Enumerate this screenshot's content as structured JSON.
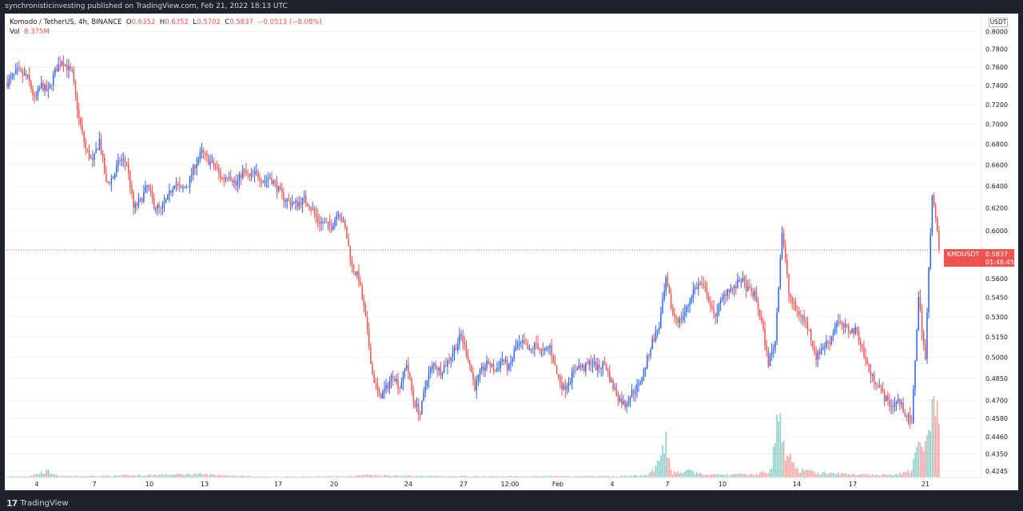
{
  "header": {
    "publisher_line": "synchronisticinvesting published on TradingView.com, Feb 21, 2022 18:13 UTC"
  },
  "legend": {
    "symbol_line": "Komodo / TetherUS, 4h, BINANCE",
    "o_label": "O",
    "o_value": "0.6352",
    "h_label": "H",
    "h_value": "0.6352",
    "l_label": "L",
    "l_value": "0.5702",
    "c_label": "C",
    "c_value": "0.5837",
    "change": "−0.0513 (−8.08%)",
    "vol_label": "Vol",
    "vol_value": "8.375M"
  },
  "currency_badge": "USDT",
  "last_price": {
    "symbol": "KMDUSDT",
    "price": "0.5837",
    "countdown": "01:46:45",
    "value": 0.5837
  },
  "footer": {
    "brand": "TradingView",
    "brand_mark": "17"
  },
  "colors": {
    "up": "#2962ff",
    "down": "#ef5350",
    "vol_up": "#26a69a",
    "vol_down": "#ef5350",
    "price_line": "#ef5350"
  },
  "chart_data": {
    "type": "candlestick",
    "timeframe": "4h",
    "y_scale": "log",
    "ylim": [
      0.4205,
      0.818
    ],
    "y_ticks": [
      "0.8000",
      "0.7800",
      "0.7600",
      "0.7400",
      "0.7200",
      "0.7000",
      "0.6800",
      "0.6600",
      "0.6400",
      "0.6200",
      "0.6000",
      "0.5600",
      "0.5450",
      "0.5300",
      "0.5150",
      "0.5000",
      "0.4850",
      "0.4700",
      "0.4580",
      "0.4460",
      "0.4350",
      "0.4245"
    ],
    "x_ticks": [
      "4",
      "7",
      "10",
      "13",
      "17",
      "20",
      "24",
      "27",
      "12:00",
      "Feb",
      "4",
      "7",
      "10",
      "14",
      "17",
      "21"
    ],
    "price_path": [
      [
        0,
        0.743
      ],
      [
        6,
        0.755
      ],
      [
        12,
        0.748
      ],
      [
        16,
        0.725
      ],
      [
        20,
        0.74
      ],
      [
        24,
        0.733
      ],
      [
        28,
        0.755
      ],
      [
        32,
        0.768
      ],
      [
        38,
        0.752
      ],
      [
        42,
        0.705
      ],
      [
        46,
        0.675
      ],
      [
        50,
        0.662
      ],
      [
        54,
        0.684
      ],
      [
        58,
        0.642
      ],
      [
        62,
        0.648
      ],
      [
        66,
        0.665
      ],
      [
        70,
        0.662
      ],
      [
        74,
        0.62
      ],
      [
        78,
        0.626
      ],
      [
        82,
        0.64
      ],
      [
        86,
        0.623
      ],
      [
        90,
        0.618
      ],
      [
        94,
        0.629
      ],
      [
        98,
        0.644
      ],
      [
        102,
        0.636
      ],
      [
        106,
        0.642
      ],
      [
        110,
        0.66
      ],
      [
        114,
        0.672
      ],
      [
        118,
        0.664
      ],
      [
        122,
        0.658
      ],
      [
        126,
        0.646
      ],
      [
        130,
        0.652
      ],
      [
        134,
        0.641
      ],
      [
        138,
        0.654
      ],
      [
        142,
        0.648
      ],
      [
        146,
        0.652
      ],
      [
        150,
        0.645
      ],
      [
        154,
        0.648
      ],
      [
        158,
        0.639
      ],
      [
        162,
        0.629
      ],
      [
        166,
        0.625
      ],
      [
        170,
        0.624
      ],
      [
        174,
        0.628
      ],
      [
        178,
        0.621
      ],
      [
        182,
        0.609
      ],
      [
        186,
        0.606
      ],
      [
        190,
        0.604
      ],
      [
        194,
        0.618
      ],
      [
        198,
        0.602
      ],
      [
        202,
        0.57
      ],
      [
        206,
        0.56
      ],
      [
        210,
        0.528
      ],
      [
        214,
        0.488
      ],
      [
        218,
        0.472
      ],
      [
        222,
        0.478
      ],
      [
        226,
        0.488
      ],
      [
        230,
        0.479
      ],
      [
        234,
        0.496
      ],
      [
        238,
        0.47
      ],
      [
        242,
        0.461
      ],
      [
        246,
        0.486
      ],
      [
        250,
        0.495
      ],
      [
        254,
        0.49
      ],
      [
        258,
        0.497
      ],
      [
        262,
        0.506
      ],
      [
        266,
        0.516
      ],
      [
        270,
        0.5
      ],
      [
        274,
        0.479
      ],
      [
        278,
        0.491
      ],
      [
        282,
        0.496
      ],
      [
        286,
        0.49
      ],
      [
        290,
        0.499
      ],
      [
        294,
        0.492
      ],
      [
        298,
        0.507
      ],
      [
        302,
        0.51
      ],
      [
        306,
        0.504
      ],
      [
        310,
        0.51
      ],
      [
        314,
        0.503
      ],
      [
        318,
        0.508
      ],
      [
        322,
        0.488
      ],
      [
        326,
        0.478
      ],
      [
        330,
        0.485
      ],
      [
        334,
        0.494
      ],
      [
        338,
        0.492
      ],
      [
        342,
        0.497
      ],
      [
        346,
        0.492
      ],
      [
        350,
        0.496
      ],
      [
        354,
        0.482
      ],
      [
        358,
        0.472
      ],
      [
        362,
        0.467
      ],
      [
        366,
        0.475
      ],
      [
        370,
        0.48
      ],
      [
        374,
        0.494
      ],
      [
        378,
        0.512
      ],
      [
        382,
        0.523
      ],
      [
        386,
        0.558
      ],
      [
        390,
        0.532
      ],
      [
        394,
        0.527
      ],
      [
        398,
        0.536
      ],
      [
        402,
        0.551
      ],
      [
        406,
        0.556
      ],
      [
        410,
        0.548
      ],
      [
        414,
        0.53
      ],
      [
        418,
        0.541
      ],
      [
        422,
        0.552
      ],
      [
        426,
        0.552
      ],
      [
        430,
        0.56
      ],
      [
        434,
        0.551
      ],
      [
        438,
        0.547
      ],
      [
        442,
        0.526
      ],
      [
        446,
        0.496
      ],
      [
        450,
        0.512
      ],
      [
        454,
        0.6
      ],
      [
        458,
        0.548
      ],
      [
        462,
        0.535
      ],
      [
        466,
        0.53
      ],
      [
        470,
        0.519
      ],
      [
        474,
        0.5
      ],
      [
        478,
        0.508
      ],
      [
        482,
        0.512
      ],
      [
        486,
        0.527
      ],
      [
        490,
        0.522
      ],
      [
        494,
        0.52
      ],
      [
        498,
        0.519
      ],
      [
        502,
        0.502
      ],
      [
        506,
        0.487
      ],
      [
        510,
        0.482
      ],
      [
        514,
        0.472
      ],
      [
        518,
        0.466
      ],
      [
        522,
        0.47
      ],
      [
        526,
        0.462
      ],
      [
        530,
        0.453
      ],
      [
        534,
        0.545
      ],
      [
        538,
        0.498
      ],
      [
        542,
        0.635
      ],
      [
        546,
        0.584
      ]
    ],
    "volume_path": [
      [
        0,
        0.2
      ],
      [
        12,
        0.3
      ],
      [
        24,
        1.5
      ],
      [
        30,
        0.3
      ],
      [
        60,
        0.4
      ],
      [
        110,
        0.8
      ],
      [
        150,
        0.2
      ],
      [
        200,
        0.3
      ],
      [
        210,
        0.6
      ],
      [
        250,
        0.3
      ],
      [
        300,
        0.3
      ],
      [
        350,
        0.3
      ],
      [
        375,
        0.5
      ],
      [
        380,
        2.5
      ],
      [
        383,
        4.6
      ],
      [
        386,
        8.0
      ],
      [
        390,
        1.2
      ],
      [
        400,
        1.5
      ],
      [
        410,
        0.6
      ],
      [
        440,
        0.8
      ],
      [
        448,
        2.0
      ],
      [
        452,
        16.0
      ],
      [
        455,
        7.0
      ],
      [
        458,
        5.2
      ],
      [
        462,
        2.0
      ],
      [
        470,
        1.3
      ],
      [
        480,
        1.0
      ],
      [
        500,
        0.8
      ],
      [
        520,
        0.6
      ],
      [
        530,
        1.5
      ],
      [
        534,
        12.0
      ],
      [
        538,
        8.0
      ],
      [
        542,
        19.0
      ],
      [
        546,
        13.0
      ]
    ]
  }
}
